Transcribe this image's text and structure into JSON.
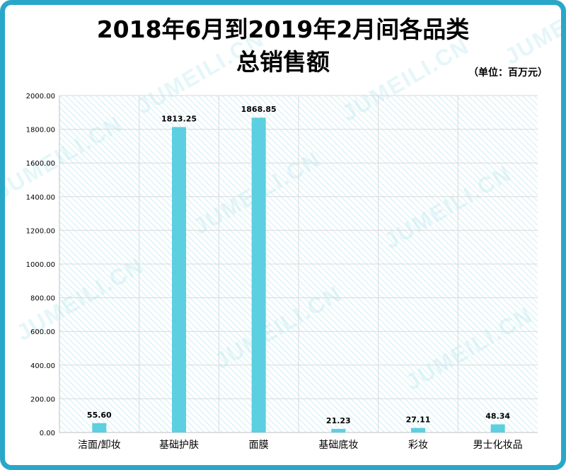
{
  "title_line1": "2018年6月到2019年2月间各品类",
  "title_line2": "总销售额",
  "unit_label": "（单位：百万元）",
  "watermark": "JUMEILI.CN",
  "colors": {
    "frame": "#2aa7c8",
    "bar": "#5ccfe0",
    "hatch": "#bfe6ec",
    "grid": "#d9d9d9"
  },
  "chart_data": {
    "type": "bar",
    "title": "2018年6月到2019年2月间各品类总销售额",
    "categories": [
      "洁面/卸妆",
      "基础护肤",
      "面膜",
      "基础底妆",
      "彩妆",
      "男士化妆品"
    ],
    "values": [
      55.6,
      1813.25,
      1868.85,
      21.23,
      27.11,
      48.34
    ],
    "value_labels": [
      "55.60",
      "1813.25",
      "1868.85",
      "21.23",
      "27.11",
      "48.34"
    ],
    "ylim": [
      0,
      2000
    ],
    "yticks": [
      "0.00",
      "200.00",
      "400.00",
      "600.00",
      "800.00",
      "1000.00",
      "1200.00",
      "1400.00",
      "1600.00",
      "1800.00",
      "2000.00"
    ],
    "grid": true,
    "xlabel": "",
    "ylabel": ""
  }
}
